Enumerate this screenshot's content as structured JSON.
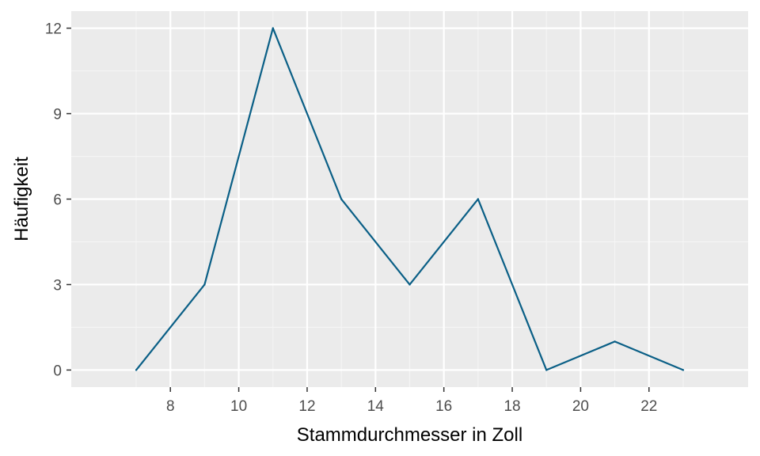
{
  "chart_data": {
    "type": "line",
    "title": "",
    "xlabel": "Stammdurchmesser in Zoll",
    "ylabel": "Häufigkeit",
    "xlim": [
      5.1,
      24.9
    ],
    "ylim": [
      -0.6,
      12.6
    ],
    "x_ticks": [
      8,
      10,
      12,
      14,
      16,
      18,
      20,
      22
    ],
    "y_ticks": [
      0,
      3,
      6,
      9,
      12
    ],
    "grid": true,
    "legend": "none",
    "series": [
      {
        "x": [
          7,
          9,
          11,
          13,
          15,
          17,
          19,
          21,
          23
        ],
        "y": [
          0,
          3,
          12,
          6,
          3,
          6,
          0,
          1,
          0
        ],
        "color": "#0a5f86"
      }
    ],
    "colors": {
      "panel_background": "#ebebeb",
      "grid_major": "#ffffff",
      "grid_minor": "#f5f5f5",
      "tick_label": "#4d4d4d",
      "tick_mark": "#333333"
    }
  }
}
